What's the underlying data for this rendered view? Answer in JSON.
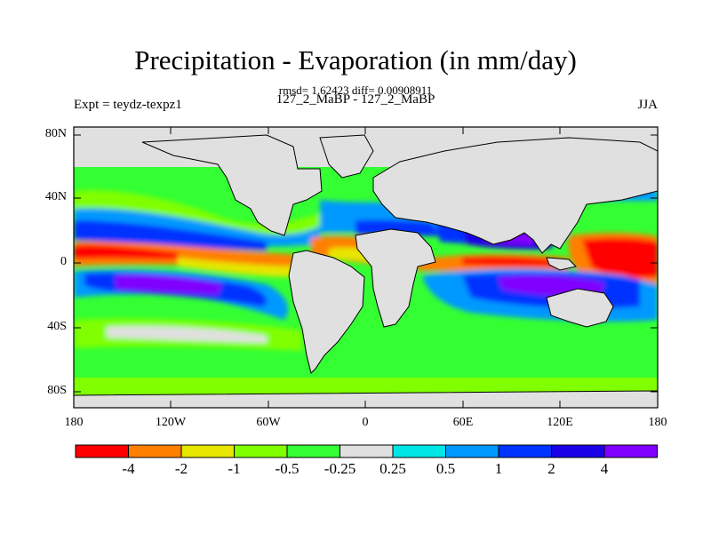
{
  "title": "Precipitation - Evaporation (in mm/day)",
  "stats": "rmsd= 1.62423  diff= 0.00908911",
  "left_label": "Expt = teydz-texpz1",
  "center_label": "127_2_MaBP - 127_2_MaBP",
  "right_label": "JJA",
  "y_ticks": [
    "80N",
    "40N",
    "0",
    "40S",
    "80S"
  ],
  "x_ticks": [
    "180",
    "120W",
    "60W",
    "0",
    "60E",
    "120E",
    "180"
  ],
  "colorbar": {
    "colors": [
      "#ff0000",
      "#ff8000",
      "#e6e600",
      "#80ff00",
      "#33ff33",
      "#e0e0e0",
      "#00e6e6",
      "#0099ff",
      "#0033ff",
      "#1a00e6",
      "#8000ff"
    ],
    "labels": [
      "-4",
      "-2",
      "-1",
      "-0.5",
      "-0.25",
      "0.25",
      "0.5",
      "1",
      "2",
      "4"
    ]
  },
  "land_color": "#e0e0e0"
}
